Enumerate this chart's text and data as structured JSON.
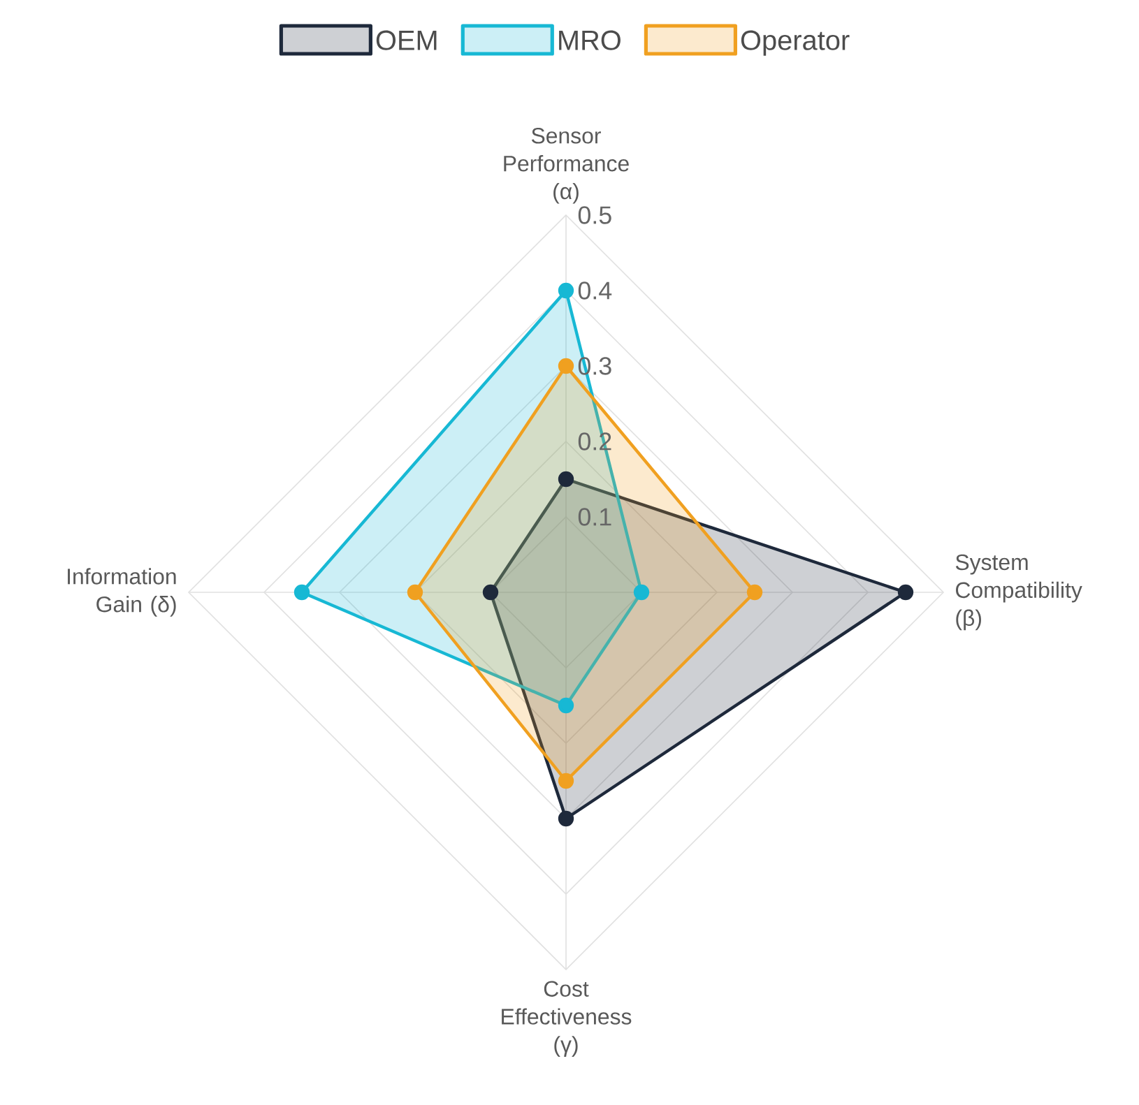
{
  "chart_data": {
    "type": "radar",
    "categories": [
      "Sensor Performance (α)",
      "System Compatibility (β)",
      "Cost Effectiveness (γ)",
      "Information Gain (δ)"
    ],
    "ylim": [
      0,
      0.5
    ],
    "yticks": [
      0.1,
      0.2,
      0.3,
      0.4,
      0.5
    ],
    "grid": true,
    "legend": "top",
    "marker": "circle",
    "line_style": "solid",
    "series": [
      {
        "name": "OEM",
        "color": "#1e293b",
        "values": [
          0.15,
          0.45,
          0.3,
          0.1
        ]
      },
      {
        "name": "MRO",
        "color": "#17b8d4",
        "values": [
          0.4,
          0.1,
          0.15,
          0.35
        ]
      },
      {
        "name": "Operator",
        "color": "#f0a020",
        "values": [
          0.3,
          0.25,
          0.25,
          0.2
        ]
      }
    ]
  }
}
